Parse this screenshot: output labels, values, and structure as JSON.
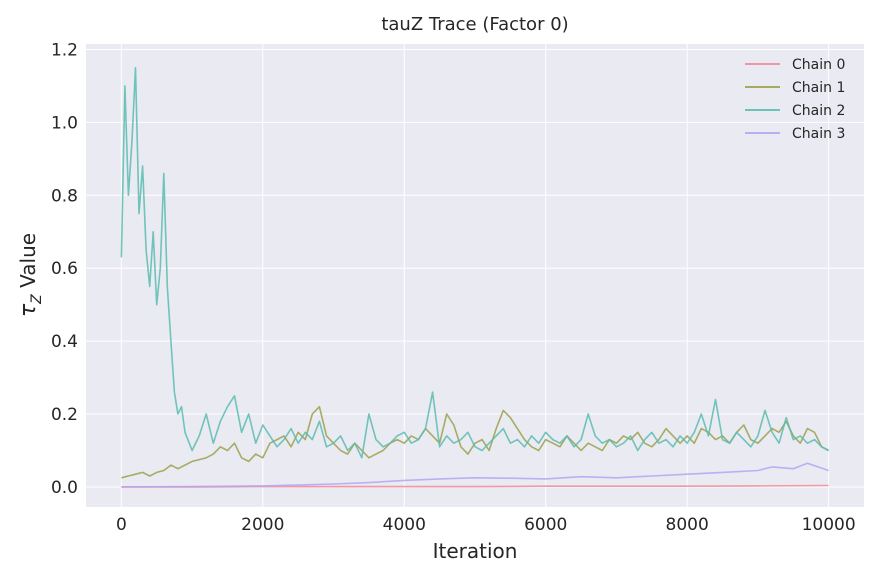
{
  "chart_data": {
    "type": "line",
    "title": "tauZ Trace (Factor 0)",
    "xlabel": "Iteration",
    "ylabel_symbol": "τ",
    "ylabel_subscript": "Z",
    "ylabel_text": " Value",
    "xlim": [
      -500,
      10500
    ],
    "ylim": [
      -0.055,
      1.215
    ],
    "xticks": [
      0,
      2000,
      4000,
      6000,
      8000,
      10000
    ],
    "xtick_labels": [
      "0",
      "2000",
      "4000",
      "6000",
      "8000",
      "10000"
    ],
    "yticks": [
      0.0,
      0.2,
      0.4,
      0.6,
      0.8,
      1.0,
      1.2
    ],
    "ytick_labels": [
      "0.0",
      "0.2",
      "0.4",
      "0.6",
      "0.8",
      "1.0",
      "1.2"
    ],
    "grid": true,
    "legend_position": "top-right",
    "series": [
      {
        "name": "Chain 0",
        "color": "#f08a9a",
        "x": [
          0,
          1000,
          2000,
          3000,
          4000,
          5000,
          6000,
          7000,
          8000,
          9000,
          10000
        ],
        "y": [
          0.0,
          0.0,
          0.001,
          0.001,
          0.001,
          0.001,
          0.002,
          0.002,
          0.002,
          0.003,
          0.004
        ]
      },
      {
        "name": "Chain 1",
        "color": "#9ba04a",
        "x": [
          0,
          100,
          200,
          300,
          400,
          500,
          600,
          700,
          800,
          900,
          1000,
          1100,
          1200,
          1300,
          1400,
          1500,
          1600,
          1700,
          1800,
          1900,
          2000,
          2100,
          2200,
          2300,
          2400,
          2500,
          2600,
          2700,
          2800,
          2900,
          3000,
          3100,
          3200,
          3300,
          3400,
          3500,
          3600,
          3700,
          3800,
          3900,
          4000,
          4100,
          4200,
          4300,
          4400,
          4500,
          4600,
          4700,
          4800,
          4900,
          5000,
          5100,
          5200,
          5300,
          5400,
          5500,
          5600,
          5700,
          5800,
          5900,
          6000,
          6100,
          6200,
          6300,
          6400,
          6500,
          6600,
          6700,
          6800,
          6900,
          7000,
          7100,
          7200,
          7300,
          7400,
          7500,
          7600,
          7700,
          7800,
          7900,
          8000,
          8100,
          8200,
          8300,
          8400,
          8500,
          8600,
          8700,
          8800,
          8900,
          9000,
          9100,
          9200,
          9300,
          9400,
          9500,
          9600,
          9700,
          9800,
          9900,
          10000
        ],
        "y": [
          0.025,
          0.03,
          0.035,
          0.04,
          0.03,
          0.04,
          0.045,
          0.06,
          0.05,
          0.06,
          0.07,
          0.075,
          0.08,
          0.09,
          0.11,
          0.1,
          0.12,
          0.08,
          0.07,
          0.09,
          0.08,
          0.12,
          0.13,
          0.14,
          0.11,
          0.15,
          0.13,
          0.2,
          0.22,
          0.14,
          0.12,
          0.1,
          0.09,
          0.12,
          0.1,
          0.08,
          0.09,
          0.1,
          0.12,
          0.13,
          0.12,
          0.14,
          0.13,
          0.16,
          0.14,
          0.12,
          0.2,
          0.17,
          0.11,
          0.09,
          0.12,
          0.13,
          0.1,
          0.16,
          0.21,
          0.19,
          0.16,
          0.13,
          0.11,
          0.1,
          0.13,
          0.12,
          0.11,
          0.14,
          0.12,
          0.1,
          0.12,
          0.11,
          0.1,
          0.13,
          0.12,
          0.14,
          0.13,
          0.15,
          0.12,
          0.11,
          0.13,
          0.16,
          0.14,
          0.12,
          0.14,
          0.12,
          0.16,
          0.15,
          0.13,
          0.14,
          0.12,
          0.15,
          0.17,
          0.13,
          0.12,
          0.14,
          0.16,
          0.15,
          0.18,
          0.14,
          0.12,
          0.16,
          0.15,
          0.11,
          0.1
        ]
      },
      {
        "name": "Chain 2",
        "color": "#5bbcb0",
        "x": [
          0,
          50,
          100,
          150,
          200,
          250,
          300,
          350,
          400,
          450,
          500,
          550,
          600,
          650,
          700,
          750,
          800,
          850,
          900,
          1000,
          1100,
          1200,
          1300,
          1400,
          1500,
          1600,
          1700,
          1800,
          1900,
          2000,
          2100,
          2200,
          2300,
          2400,
          2500,
          2600,
          2700,
          2800,
          2900,
          3000,
          3100,
          3200,
          3300,
          3400,
          3500,
          3600,
          3700,
          3800,
          3900,
          4000,
          4100,
          4200,
          4300,
          4400,
          4500,
          4600,
          4700,
          4800,
          4900,
          5000,
          5100,
          5200,
          5300,
          5400,
          5500,
          5600,
          5700,
          5800,
          5900,
          6000,
          6100,
          6200,
          6300,
          6400,
          6500,
          6600,
          6700,
          6800,
          6900,
          7000,
          7100,
          7200,
          7300,
          7400,
          7500,
          7600,
          7700,
          7800,
          7900,
          8000,
          8100,
          8200,
          8300,
          8400,
          8500,
          8600,
          8700,
          8800,
          8900,
          9000,
          9100,
          9200,
          9300,
          9400,
          9500,
          9600,
          9700,
          9800,
          9900,
          10000
        ],
        "y": [
          0.63,
          1.1,
          0.8,
          0.95,
          1.15,
          0.75,
          0.88,
          0.65,
          0.55,
          0.7,
          0.5,
          0.6,
          0.86,
          0.55,
          0.4,
          0.26,
          0.2,
          0.22,
          0.15,
          0.1,
          0.14,
          0.2,
          0.12,
          0.18,
          0.22,
          0.25,
          0.15,
          0.2,
          0.12,
          0.17,
          0.14,
          0.11,
          0.13,
          0.16,
          0.12,
          0.15,
          0.13,
          0.18,
          0.11,
          0.12,
          0.14,
          0.1,
          0.12,
          0.08,
          0.2,
          0.13,
          0.11,
          0.12,
          0.14,
          0.15,
          0.12,
          0.13,
          0.16,
          0.26,
          0.11,
          0.14,
          0.12,
          0.13,
          0.15,
          0.11,
          0.1,
          0.12,
          0.14,
          0.16,
          0.12,
          0.13,
          0.11,
          0.14,
          0.12,
          0.15,
          0.13,
          0.12,
          0.14,
          0.11,
          0.13,
          0.2,
          0.14,
          0.12,
          0.13,
          0.11,
          0.12,
          0.14,
          0.1,
          0.13,
          0.15,
          0.12,
          0.13,
          0.11,
          0.14,
          0.12,
          0.15,
          0.2,
          0.14,
          0.24,
          0.13,
          0.12,
          0.15,
          0.13,
          0.11,
          0.14,
          0.21,
          0.15,
          0.12,
          0.19,
          0.13,
          0.14,
          0.12,
          0.13,
          0.11,
          0.1
        ]
      },
      {
        "name": "Chain 3",
        "color": "#b4a4f2",
        "x": [
          0,
          1000,
          2000,
          3000,
          3500,
          4000,
          4500,
          5000,
          5500,
          6000,
          6500,
          7000,
          7500,
          8000,
          8500,
          9000,
          9200,
          9500,
          9700,
          10000
        ],
        "y": [
          0.0,
          0.001,
          0.003,
          0.008,
          0.012,
          0.018,
          0.022,
          0.025,
          0.024,
          0.022,
          0.028,
          0.025,
          0.03,
          0.035,
          0.04,
          0.045,
          0.055,
          0.05,
          0.065,
          0.045
        ]
      }
    ]
  }
}
